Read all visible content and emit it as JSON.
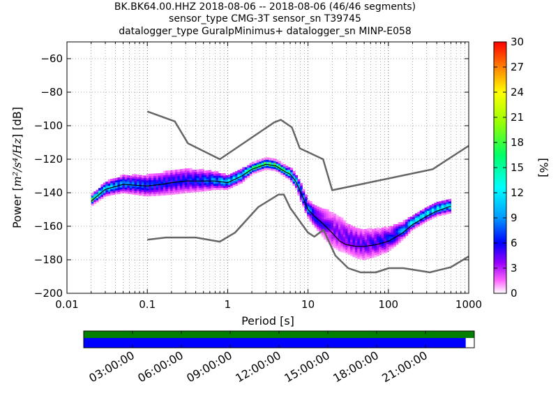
{
  "title_lines": [
    "BK.BK64.00.HHZ   2018-08-06 -- 2018-08-06  (46/46 segments)",
    "sensor_type CMG-3T sensor_sn T39745",
    "datalogger_type GuralpMinimus+ datalogger_sn MINP-E058"
  ],
  "chart_data": {
    "type": "heatmap",
    "xlabel": "Period [s]",
    "ylabel_prefix": "Power [",
    "ylabel_unit": "m²/s⁴/Hz",
    "ylabel_suffix": "] [dB]",
    "x_scale": "log",
    "xlim": [
      0.01,
      1000
    ],
    "ylim": [
      -200,
      -50
    ],
    "x_ticks": [
      0.01,
      0.1,
      1,
      10,
      100,
      1000
    ],
    "x_tick_labels": [
      "0.01",
      "0.1",
      "1",
      "10",
      "100",
      "1000"
    ],
    "y_ticks": [
      -200,
      -180,
      -160,
      -140,
      -120,
      -100,
      -80,
      -60
    ],
    "y_tick_labels": [
      "−200",
      "−180",
      "−160",
      "−140",
      "−120",
      "−100",
      "−80",
      "−60"
    ],
    "grid": true,
    "colorbar": {
      "label": "[%]",
      "range": [
        0,
        30
      ],
      "ticks": [
        0,
        3,
        6,
        9,
        12,
        15,
        18,
        21,
        24,
        27,
        30
      ],
      "colormap": "pqlx"
    },
    "pdf_band": {
      "period": [
        0.02,
        0.03,
        0.05,
        0.07,
        0.1,
        0.15,
        0.2,
        0.3,
        0.5,
        0.7,
        1,
        1.5,
        2,
        3,
        4,
        5,
        6,
        7,
        8,
        10,
        12,
        15,
        20,
        25,
        30,
        40,
        50,
        70,
        100,
        150,
        200,
        300,
        400,
        600
      ],
      "center_db": [
        -145,
        -138,
        -135,
        -135.5,
        -136,
        -135,
        -134,
        -133,
        -133,
        -133,
        -134,
        -130,
        -126,
        -123,
        -124,
        -127,
        -129,
        -133,
        -139,
        -150,
        -154,
        -158,
        -162,
        -165,
        -167,
        -170,
        -171,
        -170,
        -168,
        -163,
        -158,
        -153,
        -150,
        -148
      ],
      "half_width_db": [
        2,
        3,
        4,
        4.5,
        5,
        5.5,
        6,
        6,
        5,
        4,
        3,
        3,
        2,
        2,
        2,
        2,
        2.5,
        3,
        4,
        4,
        5,
        7,
        9,
        9,
        8,
        8,
        8,
        7,
        6,
        4,
        3,
        3,
        3,
        3
      ]
    },
    "mode_line": {
      "period": [
        0.02,
        0.03,
        0.05,
        0.07,
        0.1,
        0.15,
        0.2,
        0.3,
        0.5,
        0.7,
        1,
        1.5,
        2,
        3,
        4,
        5,
        6,
        7,
        8,
        10,
        12,
        15,
        20,
        25,
        30,
        40,
        50,
        70,
        100,
        150,
        200,
        300,
        400,
        600
      ],
      "power_db": [
        -145,
        -138,
        -135,
        -135.5,
        -136,
        -135,
        -134,
        -133,
        -133,
        -133,
        -134,
        -130,
        -126,
        -123,
        -124,
        -127,
        -129,
        -133,
        -139,
        -150,
        -154,
        -158,
        -164,
        -169,
        -171,
        -172,
        -172,
        -171,
        -169,
        -164,
        -159,
        -154,
        -151,
        -148
      ]
    },
    "new_high_noise_model": {
      "period": [
        0.1,
        0.22,
        0.32,
        0.8,
        3.8,
        4.6,
        6.3,
        7.9,
        15.4,
        20,
        354.8,
        1000
      ],
      "power_db": [
        -91.5,
        -97.4,
        -110.5,
        -120,
        -98,
        -96.5,
        -101,
        -113.5,
        -120,
        -138.5,
        -126,
        -112
      ]
    },
    "new_low_noise_model": {
      "period": [
        0.1,
        0.17,
        0.4,
        0.8,
        1.24,
        2.4,
        4.3,
        5,
        6,
        10,
        12,
        15.6,
        21.9,
        31.6,
        45,
        70,
        101,
        154,
        328,
        600,
        1000
      ],
      "power_db": [
        -168,
        -166.7,
        -166.7,
        -169.2,
        -163.7,
        -148.6,
        -141.1,
        -141.1,
        -149,
        -163.8,
        -166.2,
        -162.1,
        -177.5,
        -185,
        -187.5,
        -187.5,
        -185,
        -185,
        -187.5,
        -184.4,
        -178
      ]
    }
  },
  "segments_bar": {
    "tick_labels": [
      "03:00:00",
      "06:00:00",
      "09:00:00",
      "12:00:00",
      "15:00:00",
      "18:00:00",
      "21:00:00"
    ],
    "colors": {
      "data_available": "#007f00",
      "psd_used": "#0000ff"
    }
  },
  "colors": {
    "noise_models": "#666666",
    "mode_line": "#000000"
  }
}
